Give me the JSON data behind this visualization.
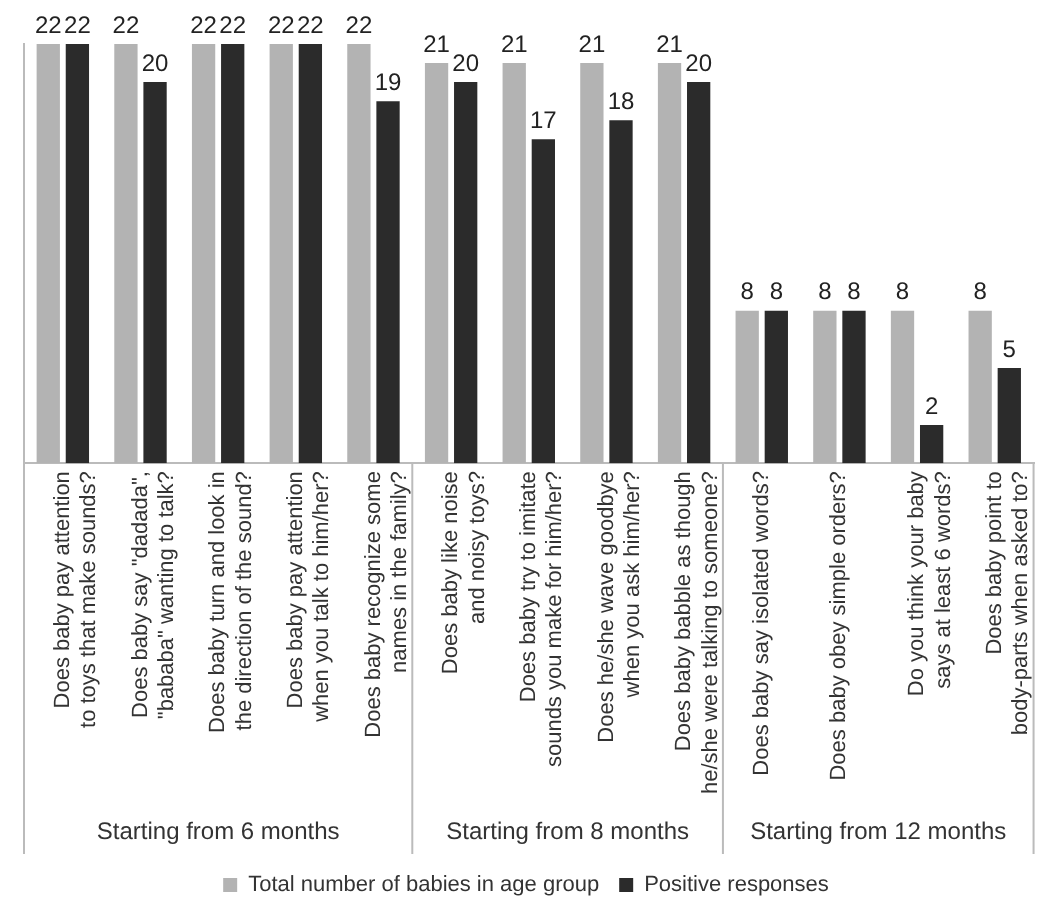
{
  "chart_data": {
    "type": "bar",
    "categories": [
      "Does baby pay attention to toys that make sounds?",
      "Does baby say \"dadada\", \"bababa\" wanting to talk?",
      "Does baby turn and look in the direction of the sound?",
      "Does baby pay attention when you talk to him/her?",
      "Does baby recognize some names in the family?",
      "Does baby like noise and noisy toys?",
      "Does baby try to imitate sounds you make for him/her?",
      "Does he/she wave goodbye when you ask him/her?",
      "Does baby babble as though he/she were talking to someone?",
      "Does baby say isolated words?",
      "Does baby obey simple orders?",
      "Do you think your baby says at least 6 words?",
      "Does baby point to body-parts when asked to?"
    ],
    "series": [
      {
        "name": "Total number of babies in age group",
        "color": "#b3b3b3",
        "values": [
          22,
          22,
          22,
          22,
          22,
          21,
          21,
          21,
          21,
          8,
          8,
          8,
          8
        ]
      },
      {
        "name": "Positive responses",
        "color": "#2b2b2b",
        "values": [
          22,
          20,
          22,
          22,
          19,
          20,
          17,
          18,
          20,
          8,
          8,
          2,
          5
        ]
      }
    ],
    "ylim": [
      0,
      22
    ],
    "relative": false,
    "data_labels": true,
    "legend": "bottom",
    "annotations": [
      "Starting from 6 months",
      "Starting from 8 months",
      "Starting from 12 months"
    ]
  }
}
